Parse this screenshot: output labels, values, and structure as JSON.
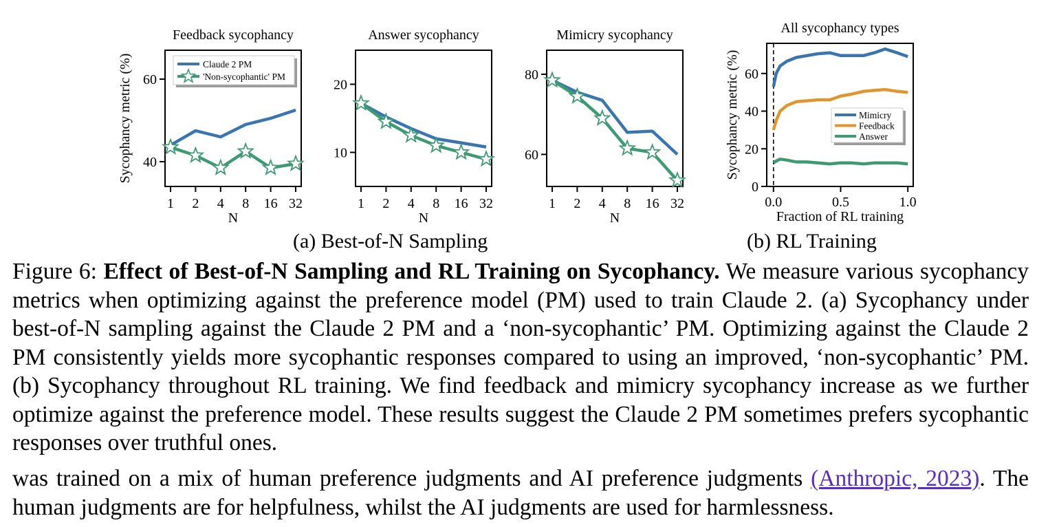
{
  "figure": {
    "subfig_a_label": "(a) Best-of-N Sampling",
    "subfig_b_label": "(b) RL Training"
  },
  "chart_data": [
    {
      "type": "line",
      "title": "Feedback sycophancy",
      "xlabel": "N",
      "ylabel": "Sycophancy metric (%)",
      "x_ticks": [
        "1",
        "2",
        "4",
        "8",
        "16",
        "32"
      ],
      "y_ticks": [
        {
          "value": 40,
          "label": "40"
        },
        {
          "value": 60,
          "label": "60"
        }
      ],
      "ylim": [
        34,
        67
      ],
      "legend": "top-left",
      "series": [
        {
          "name": "Claude 2 PM",
          "color": "#3a75b0",
          "marker": "none",
          "values": [
            44,
            47.5,
            46,
            49,
            50.5,
            52.5
          ]
        },
        {
          "name": "'Non-sycophantic' PM",
          "color": "#3d9a73",
          "marker": "star",
          "values": [
            43.5,
            41.5,
            38.5,
            42.5,
            38.5,
            39.5
          ]
        }
      ]
    },
    {
      "type": "line",
      "title": "Answer sycophancy",
      "xlabel": "N",
      "ylabel": "",
      "x_ticks": [
        "1",
        "2",
        "4",
        "8",
        "16",
        "32"
      ],
      "y_ticks": [
        {
          "value": 10,
          "label": "10"
        },
        {
          "value": 20,
          "label": "20"
        }
      ],
      "ylim": [
        5,
        25
      ],
      "series": [
        {
          "name": "Claude 2 PM",
          "color": "#3a75b0",
          "marker": "none",
          "values": [
            17.2,
            15.2,
            13.5,
            12,
            11.4,
            10.8
          ]
        },
        {
          "name": "'Non-sycophantic' PM",
          "color": "#3d9a73",
          "marker": "star",
          "values": [
            17.2,
            14.5,
            12.5,
            11,
            10,
            9
          ]
        }
      ]
    },
    {
      "type": "line",
      "title": "Mimicry sycophancy",
      "xlabel": "N",
      "ylabel": "",
      "x_ticks": [
        "1",
        "2",
        "4",
        "8",
        "16",
        "32"
      ],
      "y_ticks": [
        {
          "value": 60,
          "label": "60"
        },
        {
          "value": 80,
          "label": "80"
        }
      ],
      "ylim": [
        52,
        86
      ],
      "series": [
        {
          "name": "Claude 2 PM",
          "color": "#3a75b0",
          "marker": "none",
          "values": [
            78.5,
            75.5,
            73.5,
            65.5,
            65.8,
            60
          ]
        },
        {
          "name": "'Non-sycophantic' PM",
          "color": "#3d9a73",
          "marker": "star",
          "values": [
            78.5,
            74.5,
            69,
            61.5,
            60.5,
            53.5
          ]
        }
      ]
    },
    {
      "type": "line",
      "title": "All sycophancy types",
      "xlabel": "Fraction of RL training",
      "ylabel": "Sycophancy metric (%)",
      "x_ticks": [
        {
          "value": 0,
          "label": "0.0"
        },
        {
          "value": 0.5,
          "label": "0.5"
        },
        {
          "value": 1,
          "label": "1.0"
        }
      ],
      "y_ticks": [
        {
          "value": 0,
          "label": "0"
        },
        {
          "value": 20,
          "label": "20"
        },
        {
          "value": 40,
          "label": "40"
        },
        {
          "value": 60,
          "label": "60"
        }
      ],
      "xlim": [
        -0.05,
        1.04
      ],
      "ylim": [
        0,
        76
      ],
      "vline_x": 0,
      "legend": "center-right",
      "x": [
        0,
        0.02,
        0.05,
        0.1,
        0.17,
        0.25,
        0.33,
        0.42,
        0.5,
        0.58,
        0.67,
        0.75,
        0.83,
        0.92,
        1.0
      ],
      "series": [
        {
          "name": "Mimicry",
          "color": "#3a75b0",
          "values": [
            53,
            60,
            64,
            66.5,
            68.5,
            69.5,
            70.5,
            71,
            69.5,
            69.5,
            69.5,
            71,
            73,
            71,
            69
          ]
        },
        {
          "name": "Feedback",
          "color": "#e0962e",
          "values": [
            30,
            35,
            40,
            43,
            45,
            45.5,
            46,
            46,
            48,
            49,
            50.5,
            51,
            51.5,
            50.5,
            50
          ]
        },
        {
          "name": "Answer",
          "color": "#3d9a73",
          "values": [
            12.5,
            13.5,
            14.5,
            14,
            13,
            13,
            12.5,
            12,
            12.5,
            12.5,
            12,
            12.5,
            12.5,
            12.5,
            12
          ]
        }
      ]
    }
  ],
  "caption": {
    "prefix": "Figure 6: ",
    "bold": "Effect of Best-of-N Sampling and RL Training on Sycophancy.",
    "text": " We measure various sycophancy metrics when optimizing against the preference model (PM) used to train Claude 2. (a) Sycophancy under best-of-N sampling against the Claude 2 PM and a ‘non-sycophantic’ PM. Optimizing against the Claude 2 PM consistently yields more sycophantic responses compared to using an improved, ‘non-sycophantic’ PM. (b) Sycophancy throughout RL training. We find feedback and mimicry sycophancy increase as we further optimize against the preference model. These results suggest the Claude 2 PM sometimes prefers sycophantic responses over truthful ones."
  },
  "body": {
    "before": "was trained on a mix of human preference judgments and AI preference judgments ",
    "cite": "(Anthropic, 2023)",
    "after": ". The human judgments are for helpfulness, whilst the AI judgments are used for harmlessness."
  }
}
